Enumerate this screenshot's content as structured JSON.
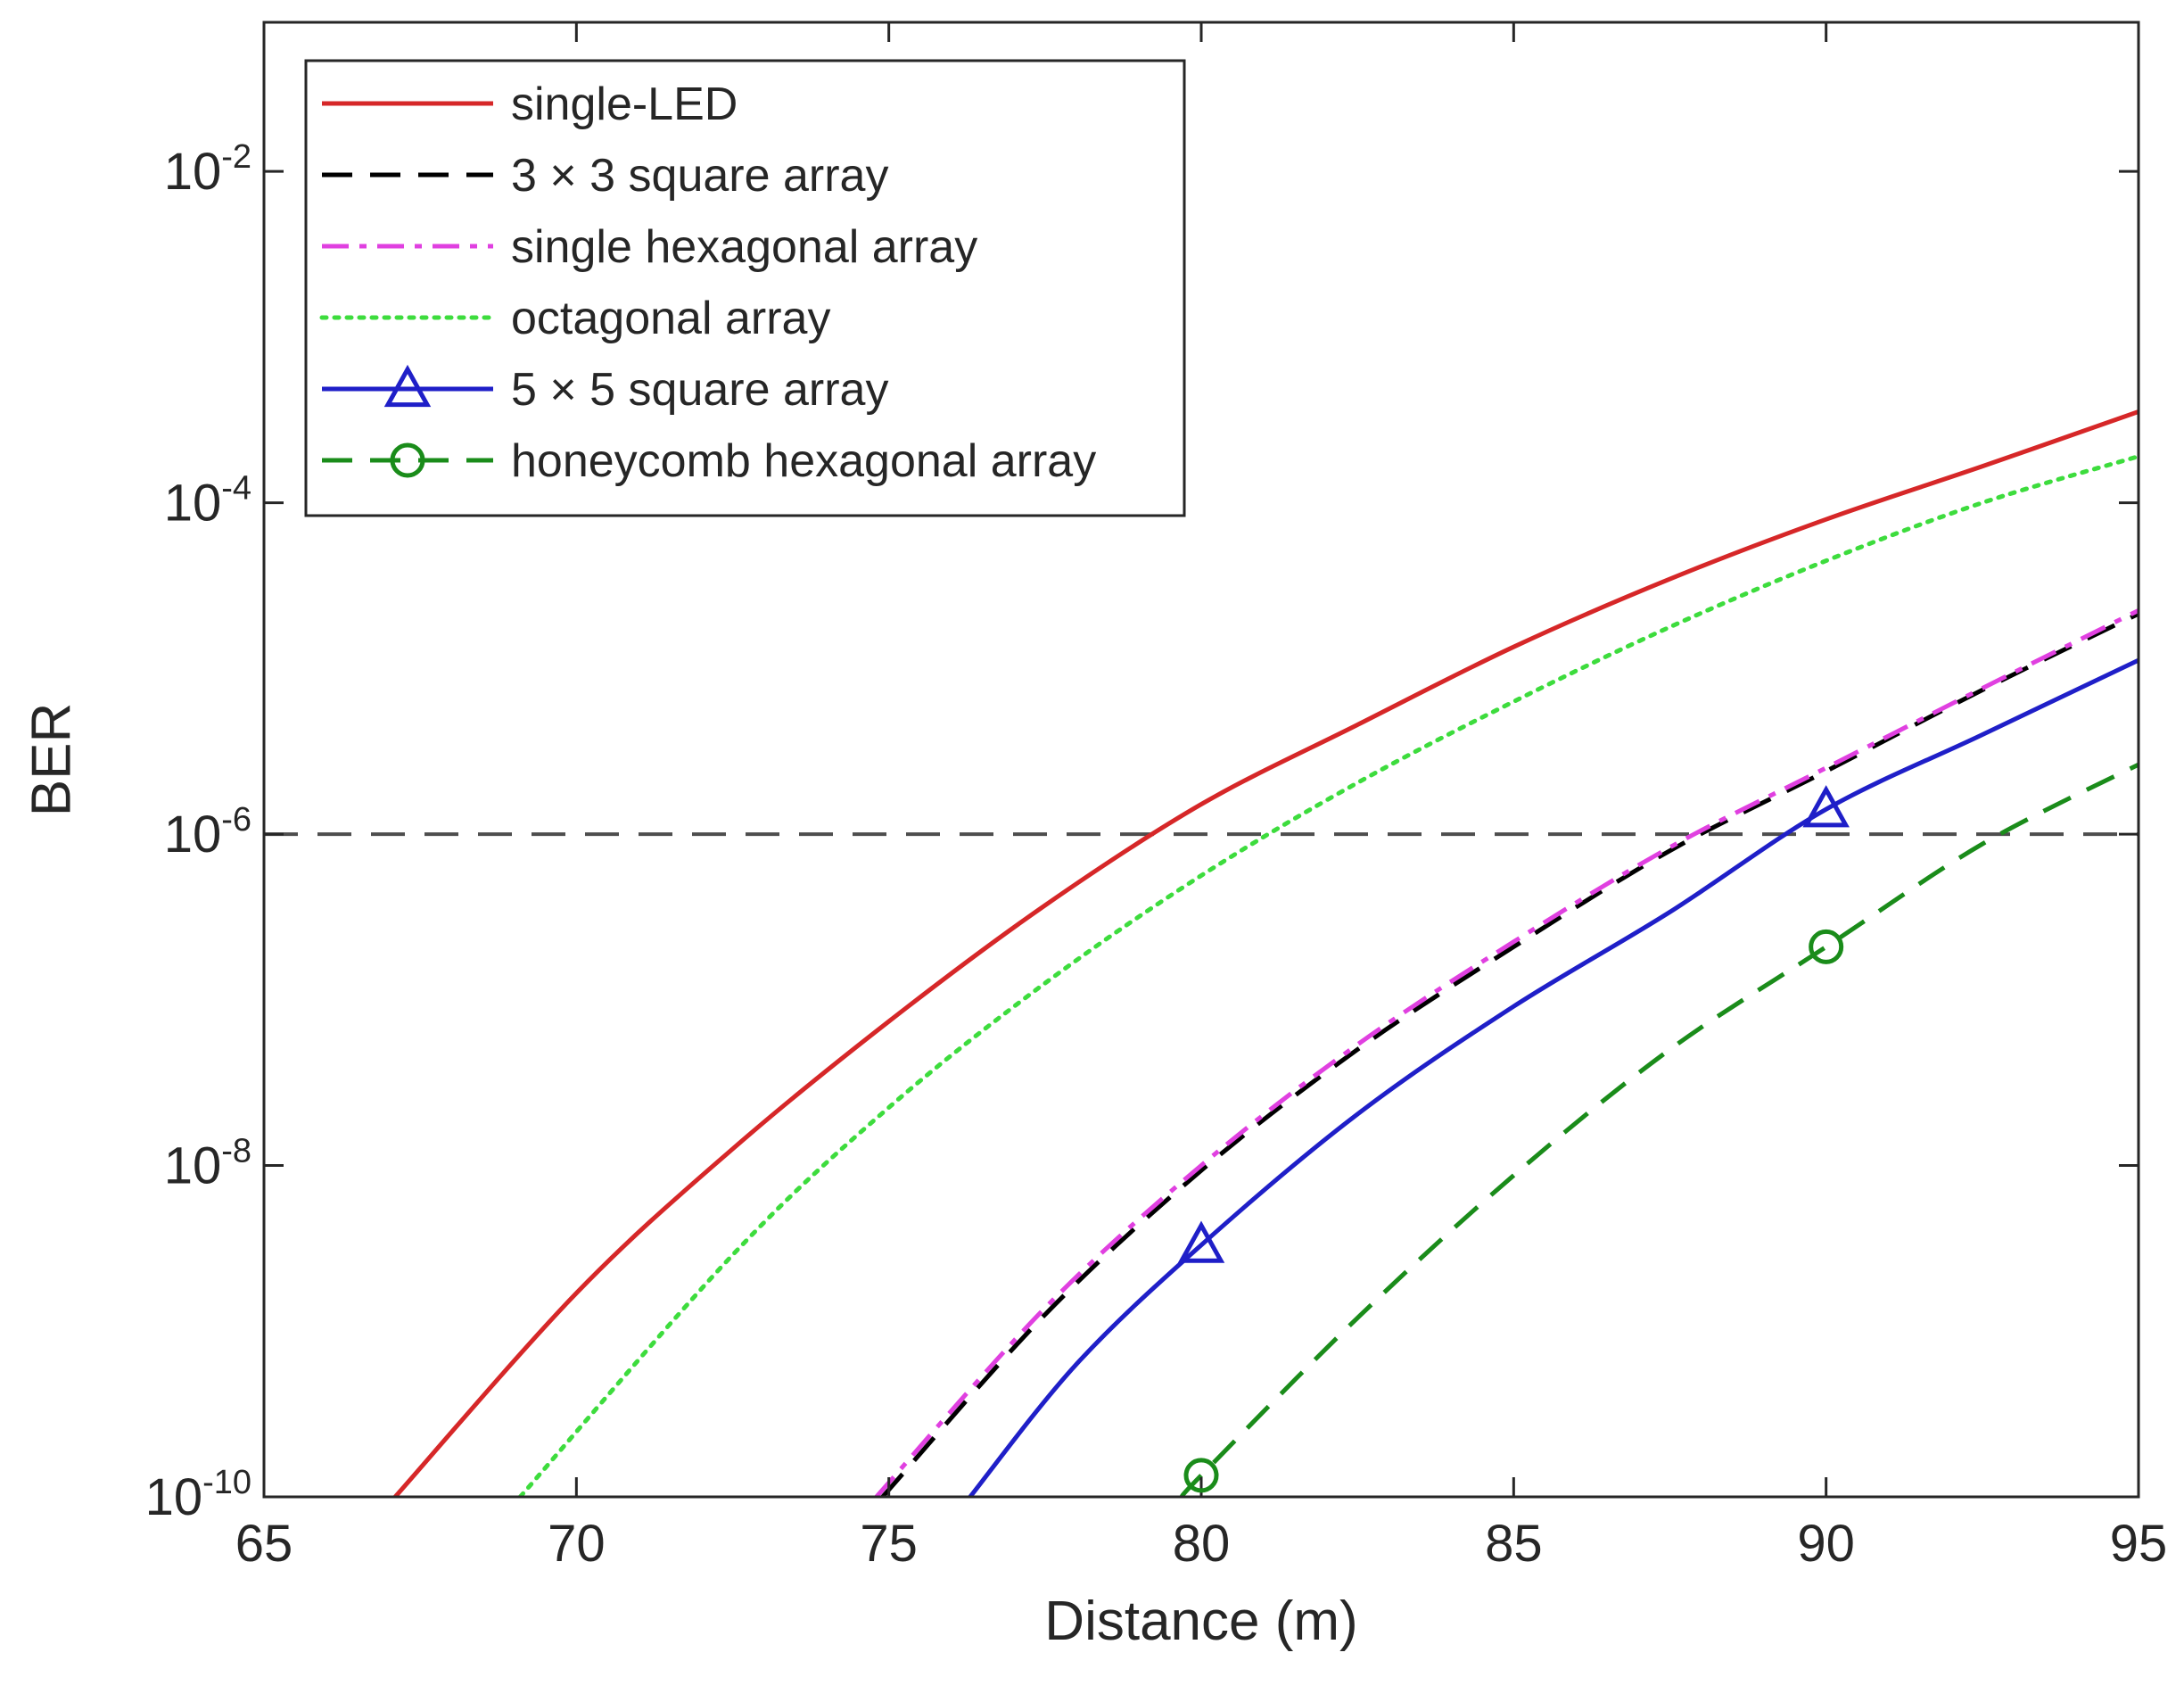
{
  "chart_data": {
    "type": "line",
    "title": "",
    "xlabel": "Distance (m)",
    "ylabel": "BER",
    "xlim": [
      65,
      95
    ],
    "ylim_log10": [
      -10,
      -1.1
    ],
    "xscale": "linear",
    "yscale": "log",
    "grid": false,
    "legend_position": "top-left",
    "x_ticks": [
      65,
      70,
      75,
      80,
      85,
      90,
      95
    ],
    "x_tick_labels": [
      "65",
      "70",
      "75",
      "80",
      "85",
      "90",
      "95"
    ],
    "y_ticks": [
      -10,
      -8,
      -6,
      -4,
      -2
    ],
    "y_tick_labels": [
      {
        "base": "10",
        "exp": "-10"
      },
      {
        "base": "10",
        "exp": "-8"
      },
      {
        "base": "10",
        "exp": "-6"
      },
      {
        "base": "10",
        "exp": "-4"
      },
      {
        "base": "10",
        "exp": "-2"
      }
    ],
    "threshold": {
      "log10_ber": -6,
      "color": "#4d4d4d",
      "style": "dashed"
    },
    "series": [
      {
        "name": "single-LED",
        "color": "#d62728",
        "style": "solid",
        "marker": "none",
        "points": [
          [
            67.1,
            -10
          ],
          [
            70,
            -8.77
          ],
          [
            72.5,
            -7.9
          ],
          [
            75,
            -7.13
          ],
          [
            77.5,
            -6.43
          ],
          [
            80,
            -5.82
          ],
          [
            82.5,
            -5.34
          ],
          [
            85,
            -4.87
          ],
          [
            87.5,
            -4.46
          ],
          [
            90,
            -4.1
          ],
          [
            92.5,
            -3.78
          ],
          [
            95,
            -3.45
          ]
        ]
      },
      {
        "name": "3 × 3 square array",
        "color": "#000000",
        "style": "dashed",
        "marker": "none",
        "points": [
          [
            74.9,
            -10
          ],
          [
            77.5,
            -8.9
          ],
          [
            80,
            -8.03
          ],
          [
            82.5,
            -7.3
          ],
          [
            85,
            -6.68
          ],
          [
            87.5,
            -6.1
          ],
          [
            90,
            -5.62
          ],
          [
            92.5,
            -5.13
          ],
          [
            95,
            -4.67
          ]
        ]
      },
      {
        "name": "single hexagonal array",
        "color": "#e040e0",
        "style": "dashdot",
        "marker": "none",
        "points": [
          [
            74.8,
            -10
          ],
          [
            77.5,
            -8.86
          ],
          [
            80,
            -8.0
          ],
          [
            82.5,
            -7.27
          ],
          [
            85,
            -6.65
          ],
          [
            87.5,
            -6.08
          ],
          [
            90,
            -5.6
          ],
          [
            92.5,
            -5.12
          ],
          [
            95,
            -4.65
          ]
        ]
      },
      {
        "name": "octagonal array",
        "color": "#3ddc3d",
        "style": "dotted",
        "marker": "none",
        "points": [
          [
            69.1,
            -10
          ],
          [
            72.5,
            -8.54
          ],
          [
            75,
            -7.65
          ],
          [
            77.5,
            -6.9
          ],
          [
            80,
            -6.25
          ],
          [
            82.5,
            -5.69
          ],
          [
            85,
            -5.2
          ],
          [
            87.5,
            -4.75
          ],
          [
            90,
            -4.35
          ],
          [
            92.5,
            -4.0
          ],
          [
            95,
            -3.72
          ]
        ]
      },
      {
        "name": "5 × 5 square array",
        "color": "#1f1fc8",
        "style": "solid",
        "marker": "triangle",
        "marker_x": [
          80,
          90
        ],
        "points": [
          [
            76.3,
            -10
          ],
          [
            78,
            -9.2
          ],
          [
            80,
            -8.48
          ],
          [
            82.5,
            -7.69
          ],
          [
            85,
            -7.04
          ],
          [
            87.5,
            -6.47
          ],
          [
            90,
            -5.85
          ],
          [
            92.5,
            -5.4
          ],
          [
            95,
            -4.95
          ]
        ]
      },
      {
        "name": "honeycomb hexagonal array",
        "color": "#1a8c1a",
        "style": "dashed",
        "marker": "circle",
        "marker_x": [
          80,
          90
        ],
        "points": [
          [
            79.7,
            -10
          ],
          [
            80,
            -9.87
          ],
          [
            82.5,
            -8.92
          ],
          [
            85,
            -8.06
          ],
          [
            87.5,
            -7.3
          ],
          [
            90,
            -6.68
          ],
          [
            92.5,
            -6.06
          ],
          [
            95,
            -5.58
          ]
        ]
      }
    ],
    "legend_entries": [
      "single-LED",
      "3 × 3 square array",
      "single hexagonal array",
      "octagonal array",
      "5 × 5 square array",
      "honeycomb hexagonal array"
    ]
  }
}
